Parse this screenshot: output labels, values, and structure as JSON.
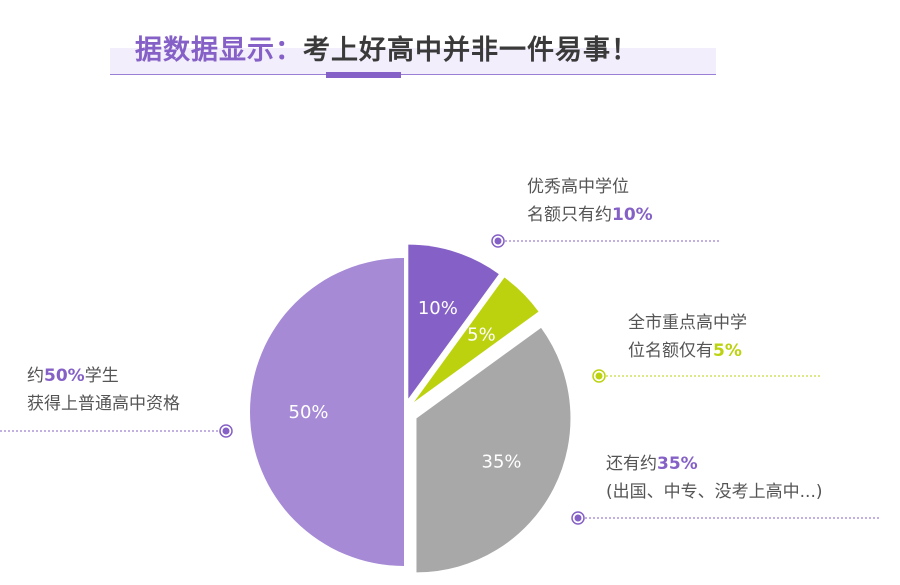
{
  "title": {
    "highlight": "据数据显示：",
    "rest": "考上好高中并非一件易事！"
  },
  "colors": {
    "purple": "#8560c6",
    "light_purple": "#a68ad6",
    "green": "#bcd20e",
    "gray": "#a8a8a8",
    "text": "#555555"
  },
  "chart_data": {
    "type": "pie",
    "slices": [
      {
        "value": 10,
        "label": "10%",
        "color": "#8560c6"
      },
      {
        "value": 5,
        "label": "5%",
        "color": "#bcd20e"
      },
      {
        "value": 35,
        "label": "35%",
        "color": "#a8a8a8"
      },
      {
        "value": 50,
        "label": "50%",
        "color": "#a68ad6"
      }
    ]
  },
  "annotations": [
    {
      "line1": "优秀高中学位",
      "line2_pre": "名额只有约",
      "line2_value": "10%",
      "line2_post": "",
      "value_color": "#8560c6"
    },
    {
      "line1": "全市重点高中学",
      "line2_pre": "位名额仅有",
      "line2_value": "5%",
      "line2_post": "",
      "value_color": "#bcd20e"
    },
    {
      "line1_pre": "还有约",
      "line1_value": "35%",
      "line2": "(出国、中专、没考上高中...)",
      "value_color": "#8560c6"
    },
    {
      "line1_pre": "约",
      "line1_value": "50%",
      "line1_post": "学生",
      "line2": "获得上普通高中资格",
      "value_color": "#8560c6"
    }
  ]
}
